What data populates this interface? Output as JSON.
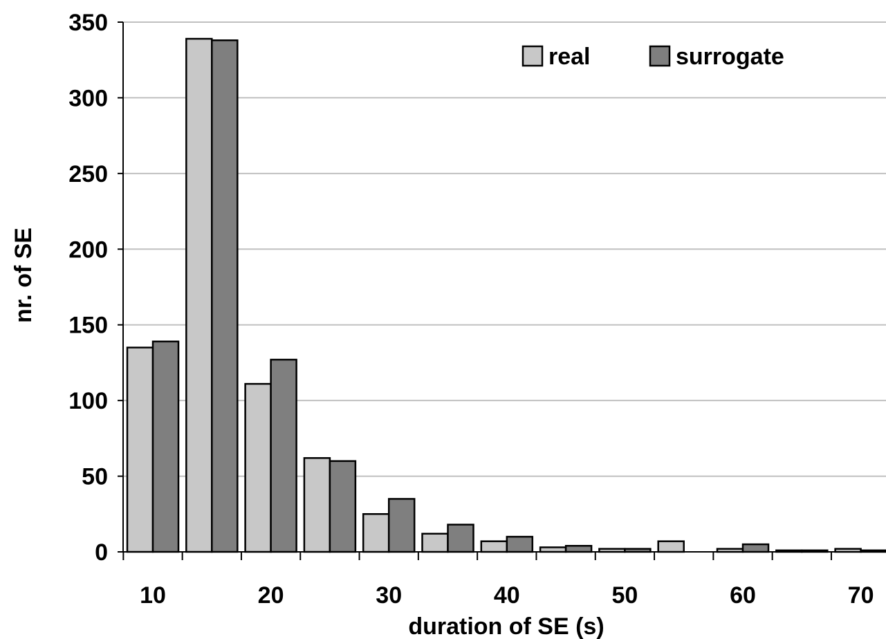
{
  "chart_data": {
    "type": "bar",
    "title": "",
    "xlabel": "duration of SE (s)",
    "ylabel": "nr. of SE",
    "ylim": [
      0,
      350
    ],
    "yticks": [
      0,
      50,
      100,
      150,
      200,
      250,
      300,
      350
    ],
    "xtick_labels": [
      "10",
      "20",
      "30",
      "40",
      "50",
      "60",
      "70"
    ],
    "grid": "horizontal",
    "legend": "top-right",
    "bin_centers": [
      10,
      15,
      20,
      25,
      30,
      35,
      40,
      45,
      50,
      55,
      60,
      65,
      70
    ],
    "series": [
      {
        "name": "real",
        "color": "#c8c8c8",
        "values": [
          135,
          339,
          111,
          62,
          25,
          12,
          7,
          3,
          2,
          7,
          2,
          1,
          2
        ]
      },
      {
        "name": "surrogate",
        "color": "#7f7f7f",
        "values": [
          139,
          338,
          127,
          60,
          35,
          18,
          10,
          4,
          2,
          0,
          5,
          1,
          1
        ]
      }
    ]
  }
}
